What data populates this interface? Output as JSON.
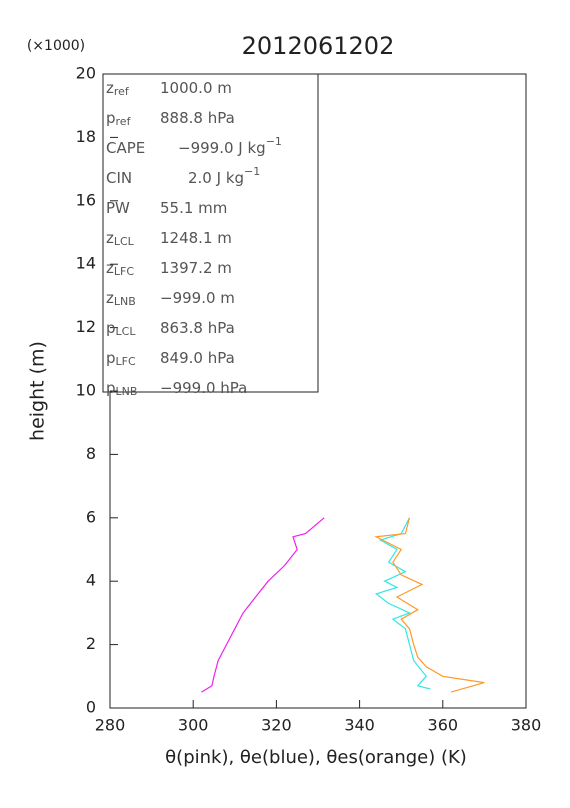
{
  "chart_data": {
    "type": "line",
    "title": "2012061202",
    "ylabel": "height (m)",
    "ymultiplier": "(×1000)",
    "xlabel": "θ(pink), θe(blue), θes(orange)   (K)",
    "xlim": [
      280,
      380
    ],
    "xticks": [
      280,
      300,
      320,
      340,
      360,
      380
    ],
    "ylim": [
      0,
      20
    ],
    "yticks": [
      0,
      2,
      4,
      6,
      8,
      10,
      12,
      14,
      16,
      18,
      20
    ],
    "series": [
      {
        "color": "#ee22ee",
        "x": [
          302,
          304.5,
          305,
          306,
          308,
          310,
          312,
          315,
          318,
          322,
          325,
          324,
          327,
          331.5
        ],
        "values": [
          0.5,
          0.7,
          1.0,
          1.5,
          2.0,
          2.5,
          3.0,
          3.5,
          4.0,
          4.5,
          5.0,
          5.4,
          5.5,
          6.0
        ]
      },
      {
        "color": "#33e6e6",
        "x": [
          357,
          354,
          356,
          353,
          352,
          351,
          348,
          352,
          347,
          344,
          349,
          346,
          351,
          347,
          349,
          345,
          350,
          352
        ],
        "values": [
          0.6,
          0.7,
          1.0,
          1.5,
          2.0,
          2.5,
          2.8,
          3.0,
          3.3,
          3.6,
          3.8,
          4.0,
          4.3,
          4.6,
          5.0,
          5.3,
          5.5,
          6.0
        ]
      },
      {
        "color": "#ff9a2a",
        "x": [
          362,
          370,
          365,
          360,
          356,
          354,
          353,
          352,
          350,
          354,
          349,
          355,
          350,
          348,
          350,
          344,
          351,
          352
        ],
        "values": [
          0.5,
          0.8,
          0.9,
          1.0,
          1.3,
          1.6,
          2.0,
          2.5,
          2.8,
          3.1,
          3.5,
          3.9,
          4.2,
          4.6,
          5.0,
          5.4,
          5.5,
          6.0
        ]
      }
    ],
    "info": [
      {
        "label": "z",
        "sub": "ref",
        "value": "1000.0 m"
      },
      {
        "label": "p",
        "sub": "ref",
        "value": "888.8 hPa"
      },
      {
        "label": "CAPE",
        "value": "−999.0 J kg",
        "sup": "−1"
      },
      {
        "label": "CIN",
        "value": "2.0 J kg",
        "sup": "−1"
      },
      {
        "label": "PW",
        "value": "55.1 mm"
      },
      {
        "label": "z",
        "sub": "LCL",
        "value": "1248.1 m"
      },
      {
        "label": "z",
        "sub": "LFC",
        "value": "1397.2 m"
      },
      {
        "label": "z",
        "sub": "LNB",
        "value": "−999.0 m"
      },
      {
        "label": "p",
        "sub": "LCL",
        "value": "863.8 hPa"
      },
      {
        "label": "p",
        "sub": "LFC",
        "value": "849.0 hPa"
      },
      {
        "label": "p",
        "sub": "LNB",
        "value": "−999.0 hPa"
      }
    ]
  }
}
